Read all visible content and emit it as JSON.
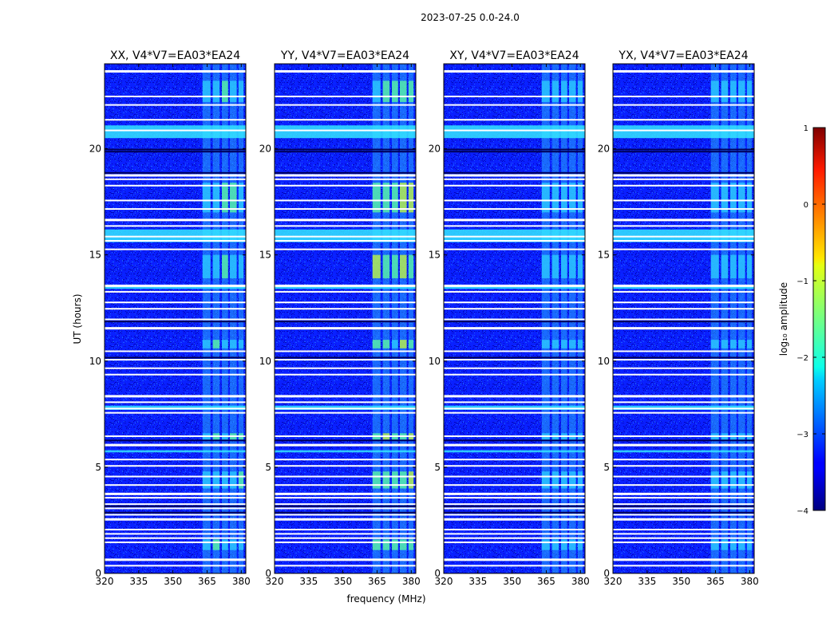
{
  "figure": {
    "suptitle": "2023-07-25 0.0-24.0"
  },
  "chart_data": {
    "type": "heatmap",
    "xlabel": "frequency (MHz)",
    "ylabel": "UT (hours)",
    "xlim": [
      320,
      382
    ],
    "ylim": [
      0,
      24
    ],
    "x_ticks": [
      "320",
      "335",
      "350",
      "365",
      "380"
    ],
    "y_ticks": [
      "0",
      "5",
      "10",
      "15",
      "20"
    ],
    "panels": [
      {
        "title": "XX, V4*V7=EA03*EA24",
        "rfi_level": 0.55
      },
      {
        "title": "YY, V4*V7=EA03*EA24",
        "rfi_level": 0.85
      },
      {
        "title": "XY, V4*V7=EA03*EA24",
        "rfi_level": 0.5
      },
      {
        "title": "YX, V4*V7=EA03*EA24",
        "rfi_level": 0.5
      }
    ],
    "rfi_band_mhz": [
      363,
      381
    ],
    "flagged_time_hours": [
      23.7,
      22.5,
      22.1,
      21.4,
      20.9,
      18.8,
      18.6,
      18.3,
      17.6,
      17.2,
      16.7,
      16.4,
      15.9,
      15.7,
      15.3,
      13.6,
      13.3,
      12.8,
      12.5,
      12.0,
      11.6,
      10.5,
      10.1,
      9.7,
      9.4,
      8.4,
      8.1,
      7.8,
      7.6,
      6.5,
      6.1,
      5.4,
      5.1,
      4.6,
      4.2,
      3.8,
      3.6,
      3.3,
      3.1,
      2.8,
      2.6,
      2.1,
      1.9,
      1.7,
      1.5,
      0.7,
      0.4
    ],
    "bright_time_ranges_hours": [
      [
        20.5,
        21.1
      ],
      [
        15.6,
        16.2
      ],
      [
        7.7,
        7.9
      ],
      [
        13.4,
        13.5
      ],
      [
        5.7,
        5.8
      ]
    ],
    "colorbar": {
      "label": "log₁₀ amplitude",
      "ticks": [
        "1",
        "0",
        "−1",
        "−2",
        "−3",
        "−4"
      ],
      "range": [
        -4,
        1
      ]
    }
  }
}
